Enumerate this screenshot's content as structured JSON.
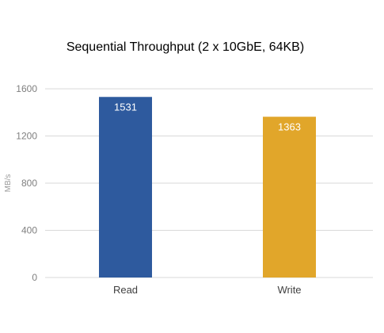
{
  "chart_data": {
    "type": "bar",
    "title": "Sequential Throughput (2 x 10GbE, 64KB)",
    "xlabel": "",
    "ylabel": "MB/s",
    "categories": [
      "Read",
      "Write"
    ],
    "values": [
      1531,
      1363
    ],
    "data_labels": [
      "1531",
      "1363"
    ],
    "bar_colors": [
      "#2e5a9e",
      "#e1a62a"
    ],
    "ylim": [
      0,
      1600
    ],
    "yticks": [
      0,
      400,
      800,
      1200,
      1600
    ],
    "grid": true,
    "legend": "none"
  }
}
